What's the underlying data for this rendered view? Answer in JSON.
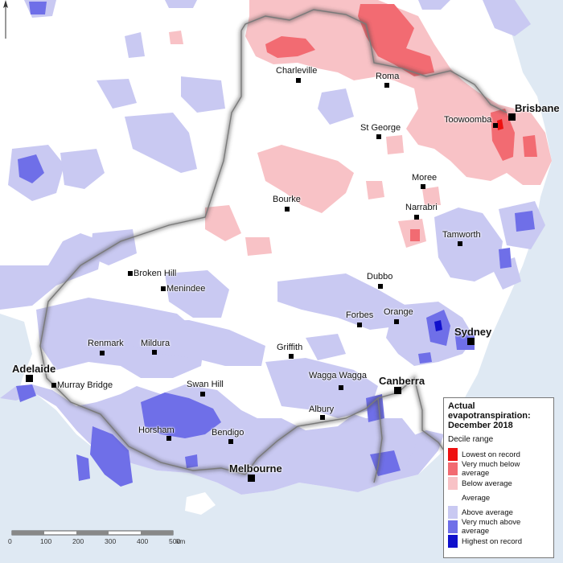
{
  "legend": {
    "title": "Actual evapotranspiration: December 2018",
    "subtitle": "Decile range",
    "items": [
      {
        "label": "Lowest on record",
        "color": "#ee1111"
      },
      {
        "label": "Very much below average",
        "color": "#f26b72"
      },
      {
        "label": "Below average",
        "color": "#f8c2c6"
      },
      {
        "label": "Average",
        "color": "#ffffff"
      },
      {
        "label": "Above average",
        "color": "#c9c9f2"
      },
      {
        "label": "Very much above average",
        "color": "#6f6fe8"
      },
      {
        "label": "Highest on record",
        "color": "#1010cc"
      }
    ]
  },
  "scale": {
    "ticks": [
      "0",
      "100",
      "200",
      "300",
      "400",
      "500"
    ],
    "unit": "km"
  },
  "places": {
    "charleville": "Charleville",
    "roma": "Roma",
    "brisbane": "Brisbane",
    "toowoomba": "Toowoomba",
    "st_george": "St George",
    "moree": "Moree",
    "bourke": "Bourke",
    "narrabri": "Narrabri",
    "tamworth": "Tamworth",
    "broken_hill": "Broken Hill",
    "menindee": "Menindee",
    "dubbo": "Dubbo",
    "forbes": "Forbes",
    "orange": "Orange",
    "sydney": "Sydney",
    "renmark": "Renmark",
    "mildura": "Mildura",
    "griffith": "Griffith",
    "adelaide": "Adelaide",
    "murray_bridge": "Murray Bridge",
    "swan_hill": "Swan Hill",
    "wagga_wagga": "Wagga Wagga",
    "canberra": "Canberra",
    "albury": "Albury",
    "horsham": "Horsham",
    "bendigo": "Bendigo",
    "melbourne": "Melbourne"
  },
  "colors": {
    "sea": "#dfe9f3",
    "land": "#ffffff",
    "border": "#7a7a7a"
  }
}
